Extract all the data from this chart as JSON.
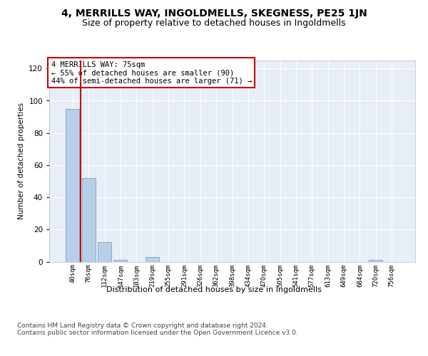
{
  "title1": "4, MERRILLS WAY, INGOLDMELLS, SKEGNESS, PE25 1JN",
  "title2": "Size of property relative to detached houses in Ingoldmells",
  "xlabel": "Distribution of detached houses by size in Ingoldmells",
  "ylabel": "Number of detached properties",
  "categories": [
    "40sqm",
    "76sqm",
    "112sqm",
    "147sqm",
    "183sqm",
    "219sqm",
    "255sqm",
    "291sqm",
    "326sqm",
    "362sqm",
    "398sqm",
    "434sqm",
    "470sqm",
    "505sqm",
    "541sqm",
    "577sqm",
    "613sqm",
    "649sqm",
    "684sqm",
    "720sqm",
    "756sqm"
  ],
  "values": [
    95,
    52,
    12,
    1,
    0,
    3,
    0,
    0,
    0,
    0,
    0,
    0,
    0,
    0,
    0,
    0,
    0,
    0,
    0,
    1,
    0
  ],
  "bar_color": "#b8cfe8",
  "bar_edge_color": "#6699cc",
  "vline_color": "#cc0000",
  "annotation_text": "4 MERRILLS WAY: 75sqm\n← 55% of detached houses are smaller (90)\n44% of semi-detached houses are larger (71) →",
  "annotation_box_edgecolor": "#cc0000",
  "ylim": [
    0,
    125
  ],
  "yticks": [
    0,
    20,
    40,
    60,
    80,
    100,
    120
  ],
  "footer_text": "Contains HM Land Registry data © Crown copyright and database right 2024.\nContains public sector information licensed under the Open Government Licence v3.0.",
  "bg_color": "#e8eef8",
  "title1_fontsize": 10,
  "title2_fontsize": 9,
  "ann_fontsize": 7.5,
  "xlabel_fontsize": 8,
  "ylabel_fontsize": 7.5,
  "footer_fontsize": 6.5,
  "xtick_fontsize": 6.5,
  "ytick_fontsize": 7.5
}
